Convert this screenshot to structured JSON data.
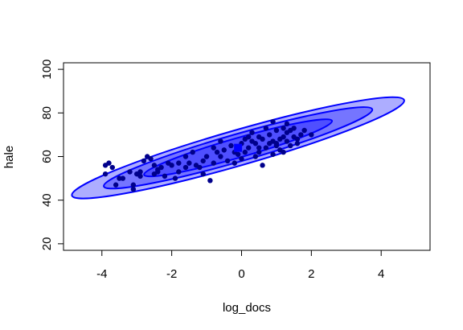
{
  "chart_data": {
    "type": "scatter",
    "xlabel": "log_docs",
    "ylabel": "hale",
    "xlim": [
      -5.1,
      5.4
    ],
    "ylim": [
      17,
      103
    ],
    "x_ticks": [
      -4,
      -2,
      0,
      2,
      4
    ],
    "y_ticks": [
      20,
      40,
      60,
      80,
      100
    ],
    "grid": false,
    "colors": {
      "points": "#00008b",
      "center": "#0000ff",
      "ellipse_stroke": "#0000ff",
      "ellipse_fill": "rgba(0,0,255,0.32)"
    },
    "center": {
      "x": -0.1,
      "y": 64
    },
    "ellipses": [
      {
        "level": "outer",
        "rx": 4.95,
        "ry": 4.0,
        "angle": 16
      },
      {
        "level": "middle",
        "rx": 4.0,
        "ry": 3.1,
        "angle": 16
      },
      {
        "level": "inner",
        "rx": 2.8,
        "ry": 2.2,
        "angle": 16
      }
    ],
    "points": [
      [
        -3.9,
        56
      ],
      [
        -3.8,
        57
      ],
      [
        -3.7,
        55
      ],
      [
        -3.9,
        52
      ],
      [
        -3.6,
        47
      ],
      [
        -3.4,
        50
      ],
      [
        -3.1,
        47
      ],
      [
        -3.1,
        45
      ],
      [
        -3.0,
        52
      ],
      [
        -2.9,
        53
      ],
      [
        -2.8,
        58
      ],
      [
        -2.7,
        60
      ],
      [
        -2.6,
        59
      ],
      [
        -2.5,
        56
      ],
      [
        -2.4,
        53
      ],
      [
        -2.3,
        55
      ],
      [
        -2.2,
        51
      ],
      [
        -2.1,
        57
      ],
      [
        -1.9,
        50
      ],
      [
        -1.8,
        53
      ],
      [
        -1.6,
        60
      ],
      [
        -1.5,
        57
      ],
      [
        -1.4,
        62
      ],
      [
        -1.2,
        55
      ],
      [
        -1.1,
        58
      ],
      [
        -1.0,
        60
      ],
      [
        -0.9,
        49
      ],
      [
        -0.8,
        57
      ],
      [
        -0.7,
        62
      ],
      [
        -0.6,
        60
      ],
      [
        -0.5,
        63
      ],
      [
        -0.4,
        58
      ],
      [
        -0.3,
        65
      ],
      [
        -0.2,
        57
      ],
      [
        -0.1,
        61
      ],
      [
        0.0,
        66
      ],
      [
        0.1,
        68
      ],
      [
        0.1,
        62
      ],
      [
        0.2,
        64
      ],
      [
        0.3,
        67
      ],
      [
        0.3,
        71
      ],
      [
        0.4,
        66
      ],
      [
        0.5,
        69
      ],
      [
        0.5,
        62
      ],
      [
        0.6,
        56
      ],
      [
        0.6,
        68
      ],
      [
        0.7,
        64
      ],
      [
        0.8,
        66
      ],
      [
        0.8,
        70
      ],
      [
        0.9,
        67
      ],
      [
        0.9,
        76
      ],
      [
        1.0,
        72
      ],
      [
        1.0,
        65
      ],
      [
        1.1,
        68
      ],
      [
        1.1,
        63
      ],
      [
        1.2,
        69
      ],
      [
        1.2,
        73
      ],
      [
        1.3,
        67
      ],
      [
        1.3,
        71
      ],
      [
        1.4,
        65
      ],
      [
        1.4,
        72
      ],
      [
        1.5,
        69
      ],
      [
        1.5,
        73
      ],
      [
        1.6,
        68
      ],
      [
        1.7,
        70
      ],
      [
        1.8,
        72
      ],
      [
        2.0,
        70
      ],
      [
        1.2,
        62
      ],
      [
        0.4,
        60
      ],
      [
        -0.8,
        64
      ],
      [
        -1.8,
        57
      ],
      [
        -2.4,
        54
      ],
      [
        -3.2,
        53
      ],
      [
        -1.3,
        56
      ],
      [
        0.7,
        73
      ],
      [
        0.2,
        69
      ],
      [
        1.3,
        75
      ],
      [
        -0.6,
        67
      ],
      [
        -3.5,
        50
      ],
      [
        -2.0,
        56
      ],
      [
        0.9,
        61
      ],
      [
        -1.6,
        55
      ],
      [
        0.0,
        59
      ],
      [
        1.0,
        66
      ],
      [
        -2.5,
        52
      ],
      [
        -0.2,
        62
      ],
      [
        1.6,
        66
      ],
      [
        -1.1,
        52
      ],
      [
        0.5,
        64
      ],
      [
        -2.9,
        51
      ]
    ]
  }
}
